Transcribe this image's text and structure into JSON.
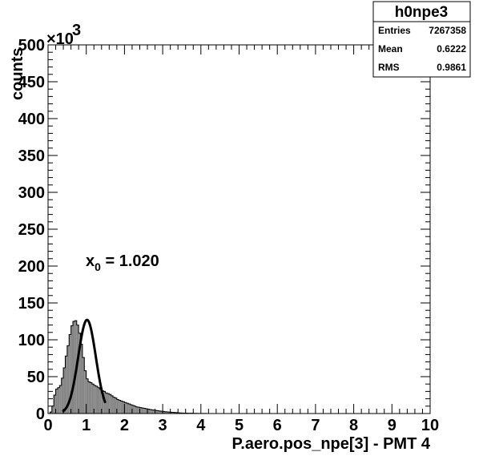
{
  "chart_data": {
    "type": "bar",
    "title": "h0npe3",
    "xlabel": "P.aero.pos_npe[3] - PMT 4",
    "ylabel": "counts",
    "y_multiplier": {
      "base": "×10",
      "exponent": "3"
    },
    "xlim": [
      0,
      10
    ],
    "ylim": [
      0,
      500
    ],
    "x_tick_labels": [
      "0",
      "1",
      "2",
      "3",
      "4",
      "5",
      "6",
      "7",
      "8",
      "9",
      "10"
    ],
    "y_tick_labels": [
      "0",
      "50",
      "100",
      "150",
      "200",
      "250",
      "300",
      "350",
      "400",
      "450",
      "500"
    ],
    "grid": false,
    "legend": "none",
    "bin_width": 0.05,
    "bin_start": 0,
    "values": [
      0,
      2,
      10,
      25,
      33,
      35,
      38,
      48,
      62,
      78,
      92,
      107,
      119,
      125,
      126,
      120,
      109,
      94,
      76,
      58,
      47,
      43,
      42,
      40,
      38,
      37,
      35,
      33,
      31,
      30,
      28,
      27,
      26,
      24,
      22,
      21,
      19,
      18,
      17,
      16,
      15,
      14,
      13,
      12,
      11,
      10,
      9,
      8.5,
      8,
      7.5,
      7,
      6.5,
      6,
      5.5,
      5,
      4.6,
      4.2,
      3.8,
      3.4,
      3.1,
      2.8,
      2.5,
      2.2,
      2.0,
      1.8,
      1.6,
      1.4,
      1.2,
      1.0,
      0.8,
      0.7,
      0.6,
      0.5,
      0.45,
      0.4,
      0.35,
      0.3,
      0.25,
      0.2,
      0.15,
      0.12,
      0.1,
      0.08,
      0.06,
      0.05,
      0.04,
      0.03,
      0.03,
      0.02,
      0.02,
      0.02,
      0.01,
      0.01,
      0.01,
      0.01,
      0.01,
      0.01,
      0.01,
      0.01,
      0.01,
      0.01,
      0.01,
      0.01,
      0.01,
      0.01,
      0.01,
      0.01,
      0.01,
      0.01,
      0.01,
      0.01,
      0.01,
      0.01,
      0.01,
      0.01,
      0.01,
      0.01,
      0.01,
      0.01,
      0.01,
      0.01,
      0.01,
      0.01,
      0.01,
      0.01,
      0,
      0,
      0,
      0,
      0,
      0,
      0,
      0,
      0,
      0,
      0,
      0,
      0,
      0,
      0,
      0,
      0,
      0,
      0,
      0,
      0,
      0,
      0,
      0,
      0,
      0,
      0,
      0,
      0,
      0,
      0,
      0,
      0,
      0,
      0,
      0,
      0,
      0,
      0,
      0,
      0,
      0,
      0,
      0,
      0,
      0,
      0,
      0,
      0,
      0,
      0,
      0,
      0,
      0,
      0,
      0,
      0,
      0,
      0,
      0,
      0,
      0,
      0,
      0,
      0,
      0,
      0,
      0,
      0,
      0,
      0,
      0,
      0,
      0,
      0,
      0,
      0,
      0,
      0,
      0,
      0,
      0,
      0,
      0,
      0,
      0,
      0,
      0,
      0
    ],
    "fit": {
      "type": "gaussian",
      "mean": 1.02,
      "amplitude": 127,
      "sigma": 0.23,
      "x_range": [
        0.38,
        1.5
      ]
    },
    "annotation": {
      "base": "x",
      "subscript": "0",
      "text": " = 1.020",
      "x": 1.0,
      "y": 202
    },
    "stats": {
      "name": "h0npe3",
      "rows": [
        {
          "label": "Entries",
          "value": "7267358"
        },
        {
          "label": "Mean",
          "value": "0.6222"
        },
        {
          "label": "RMS",
          "value": "0.9861"
        }
      ]
    },
    "colors": {
      "fill": "#868686",
      "line": "#000000",
      "background": "#ffffff"
    }
  }
}
